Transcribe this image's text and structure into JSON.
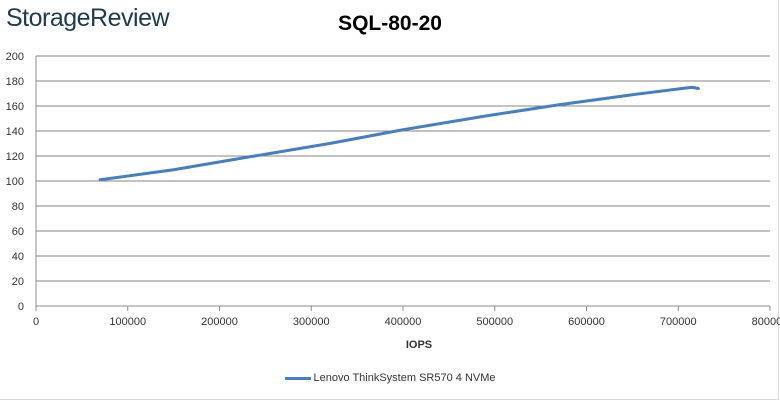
{
  "brand": "StorageReview",
  "chart_data": {
    "type": "line",
    "title": "SQL-80-20",
    "xlabel": "IOPS",
    "ylabel": "",
    "xlim": [
      0,
      800000
    ],
    "ylim": [
      0,
      200
    ],
    "x_ticks": [
      "0",
      "100000",
      "200000",
      "300000",
      "400000",
      "500000",
      "600000",
      "700000",
      "800000"
    ],
    "y_ticks": [
      "0",
      "20",
      "40",
      "60",
      "80",
      "100",
      "120",
      "140",
      "160",
      "180",
      "200"
    ],
    "grid": true,
    "legend": "bottom",
    "series": [
      {
        "name": "Lenovo ThinkSystem SR570 4 NVMe",
        "color": "#4a7ebb",
        "x": [
          70000,
          150000,
          230000,
          320000,
          400000,
          490000,
          570000,
          650000,
          715000,
          722000
        ],
        "y": [
          101,
          109,
          119,
          130,
          141,
          152,
          161,
          169,
          175,
          174
        ]
      }
    ]
  }
}
